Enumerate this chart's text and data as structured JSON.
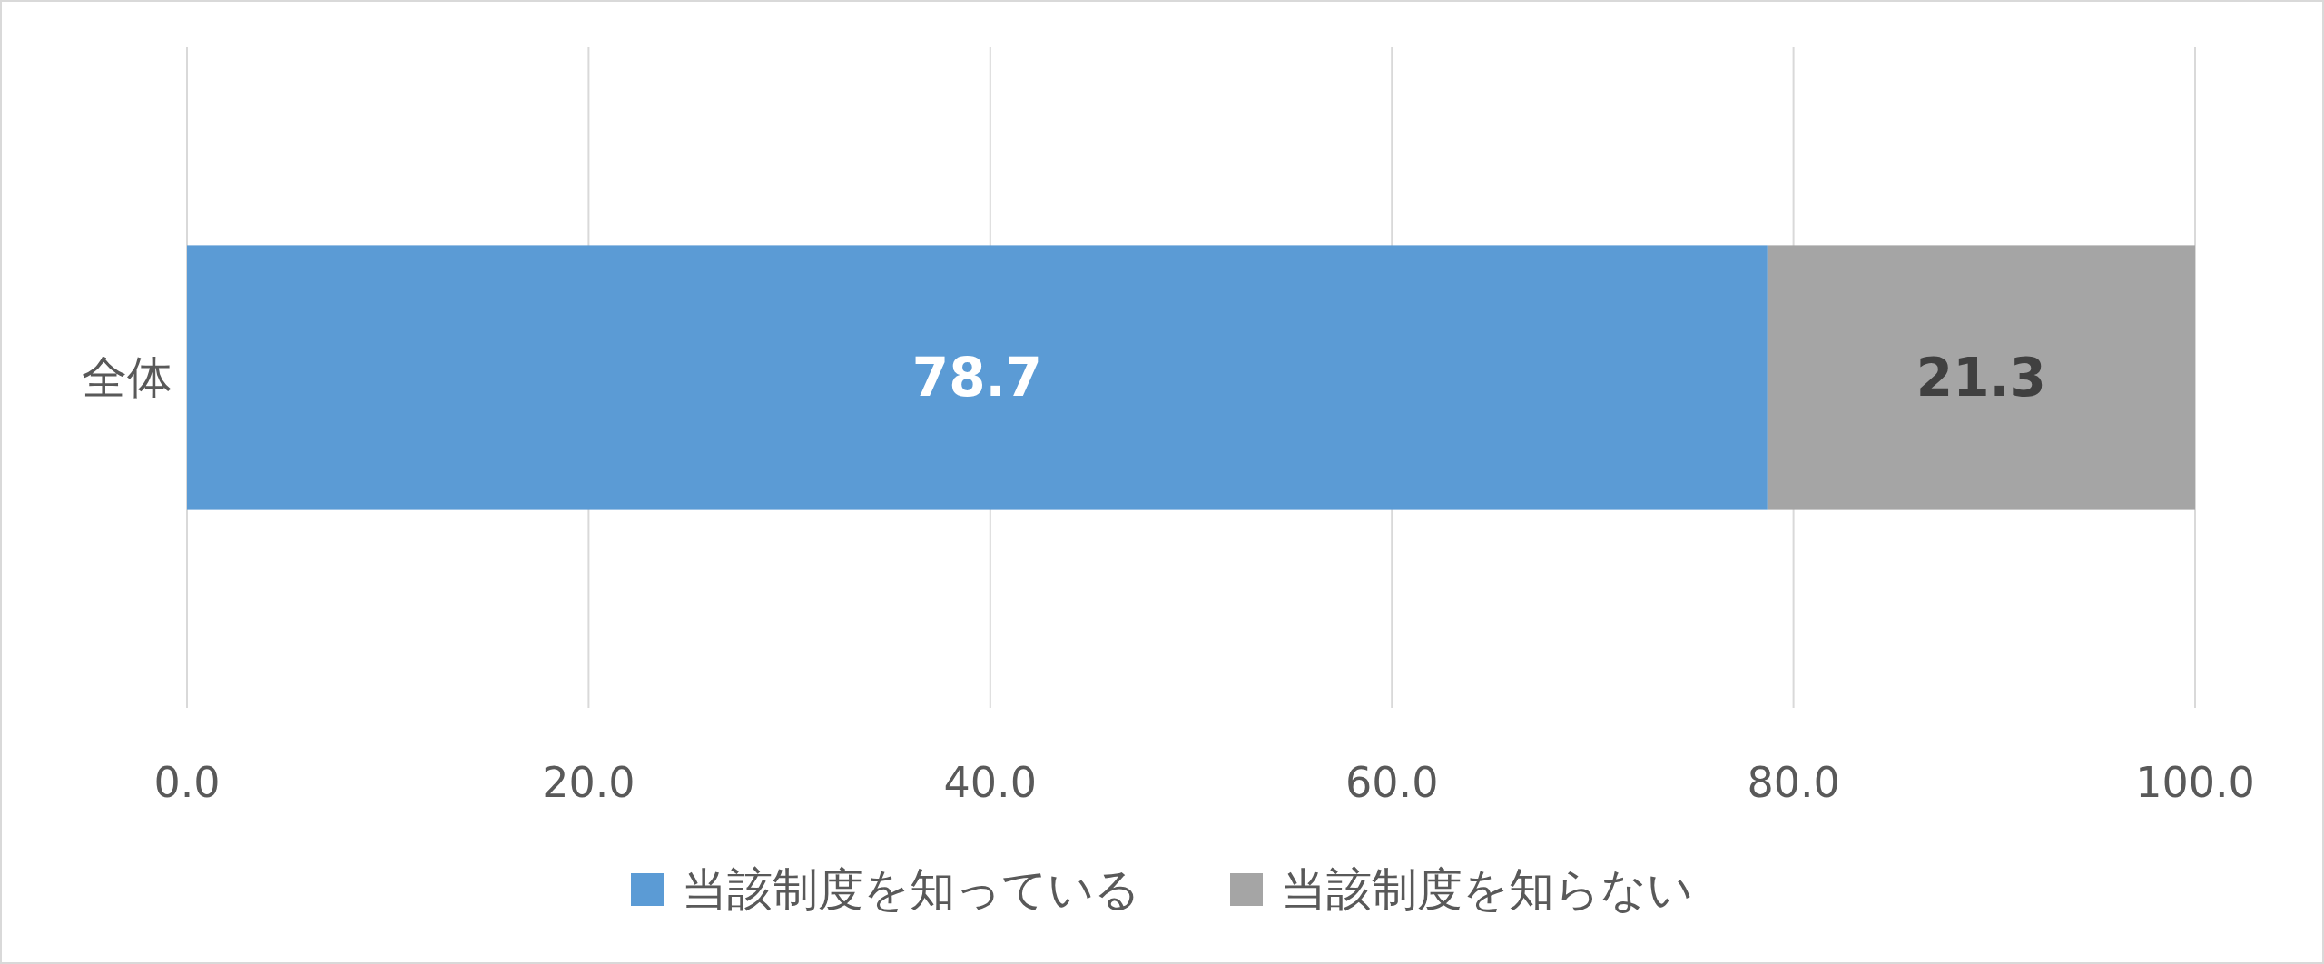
{
  "chart_data": {
    "type": "bar",
    "orientation": "horizontal",
    "stacked": true,
    "categories": [
      "全体"
    ],
    "series": [
      {
        "name": "当該制度を知っている",
        "color": "#5b9bd5",
        "values": [
          78.7
        ]
      },
      {
        "name": "当該制度を知らない",
        "color": "#a5a5a5",
        "values": [
          21.3
        ]
      }
    ],
    "xlim": [
      0,
      100
    ],
    "xticks": [
      {
        "value": 0,
        "label": "0.0"
      },
      {
        "value": 20,
        "label": "20.0"
      },
      {
        "value": 40,
        "label": "40.0"
      },
      {
        "value": 60,
        "label": "60.0"
      },
      {
        "value": 80,
        "label": "80.0"
      },
      {
        "value": 100,
        "label": "100.0"
      }
    ],
    "grid": "x",
    "legend": "bottom",
    "data_labels": true
  }
}
